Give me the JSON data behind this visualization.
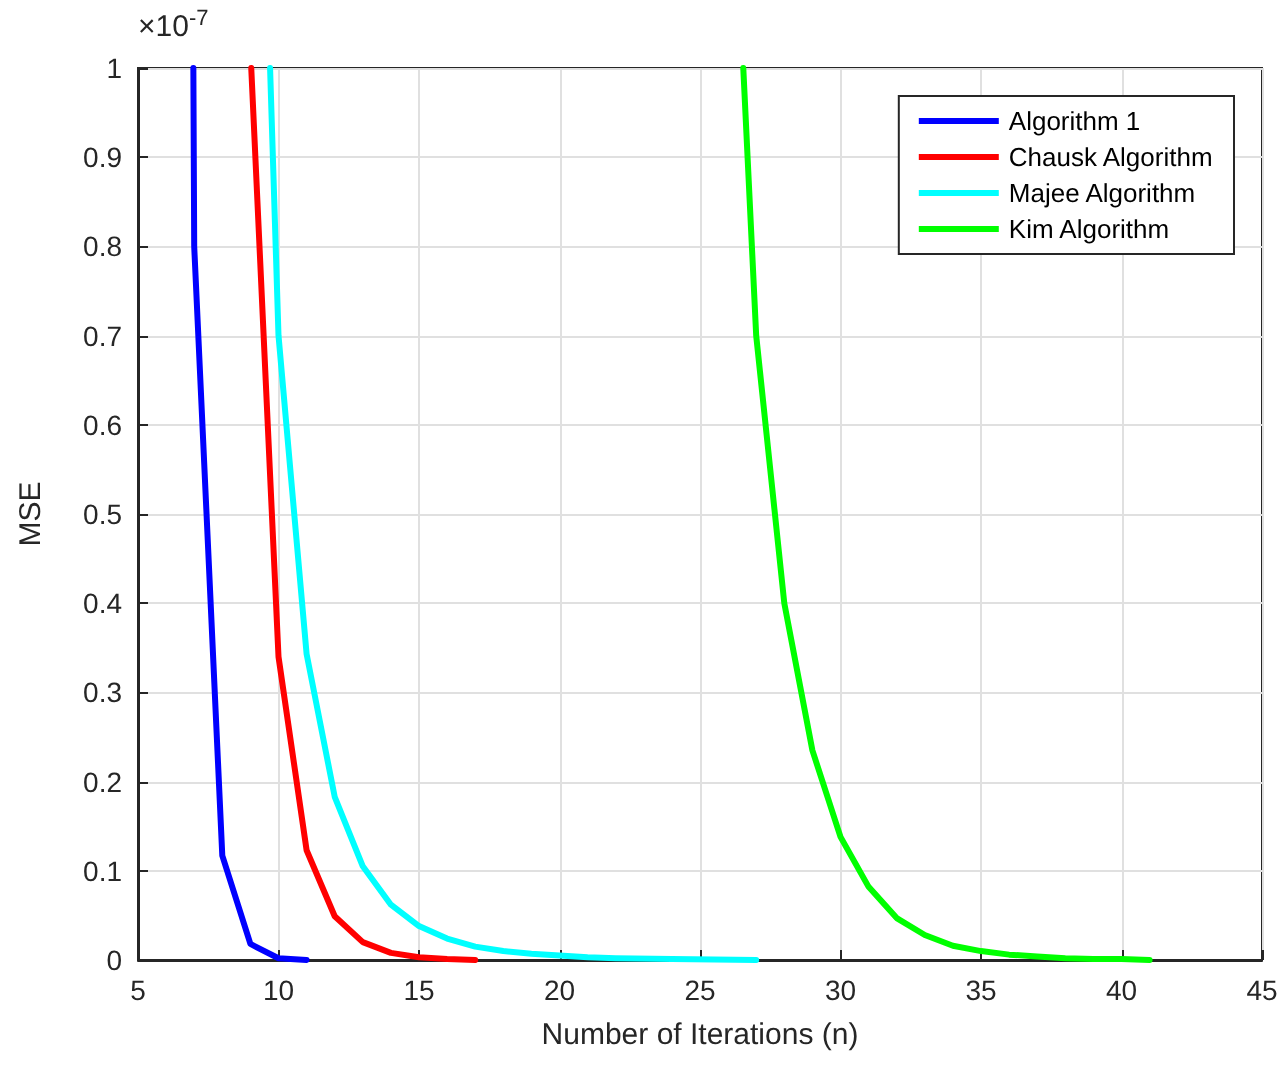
{
  "chart_data": {
    "type": "line",
    "xlabel": "Number of Iterations (n)",
    "ylabel": "MSE",
    "annotations": [
      "×10$^{-7}$"
    ],
    "series": [
      {
        "name": "Algorithm 1",
        "color": "#0000ff",
        "x": [
          6.97,
          7,
          8,
          9,
          10,
          11
        ],
        "values": [
          1,
          0.8,
          0.117,
          0.018,
          0.002,
          0
        ]
      },
      {
        "name": "Chausk Algorithm",
        "color": "#ff0000",
        "x": [
          9.03,
          10,
          11,
          12,
          13,
          14,
          15,
          16,
          17
        ],
        "values": [
          1,
          0.34,
          0.123,
          0.049,
          0.02,
          0.008,
          0.003,
          0.001,
          0
        ]
      },
      {
        "name": "Majee Algorithm",
        "color": "#00ffff",
        "x": [
          9.7,
          10,
          11,
          12,
          13,
          14,
          15,
          16,
          17,
          18,
          19,
          20,
          21,
          22,
          24,
          27
        ],
        "values": [
          1,
          0.7,
          0.343,
          0.183,
          0.105,
          0.062,
          0.038,
          0.024,
          0.015,
          0.01,
          0.007,
          0.005,
          0.003,
          0.002,
          0.001,
          0
        ]
      },
      {
        "name": "Kim Algorithm",
        "color": "#00ff00",
        "x": [
          26.54,
          27,
          28,
          29,
          30,
          31,
          32,
          33,
          34,
          35,
          36,
          37,
          38,
          39,
          40,
          41
        ],
        "values": [
          1,
          0.7,
          0.4,
          0.235,
          0.138,
          0.082,
          0.047,
          0.028,
          0.016,
          0.01,
          0.006,
          0.004,
          0.002,
          0.001,
          0.001,
          0
        ]
      }
    ],
    "xlim": [
      5,
      45
    ],
    "xticks": [
      5,
      10,
      15,
      20,
      25,
      30,
      35,
      40,
      45
    ],
    "ylim": [
      0,
      1
    ],
    "yticks": [
      0,
      0.1,
      0.2,
      0.3,
      0.4,
      0.5,
      0.6,
      0.7,
      0.8,
      0.9,
      1
    ],
    "grid": true,
    "legend": "top right",
    "marker": "none",
    "line_style": "solid"
  }
}
